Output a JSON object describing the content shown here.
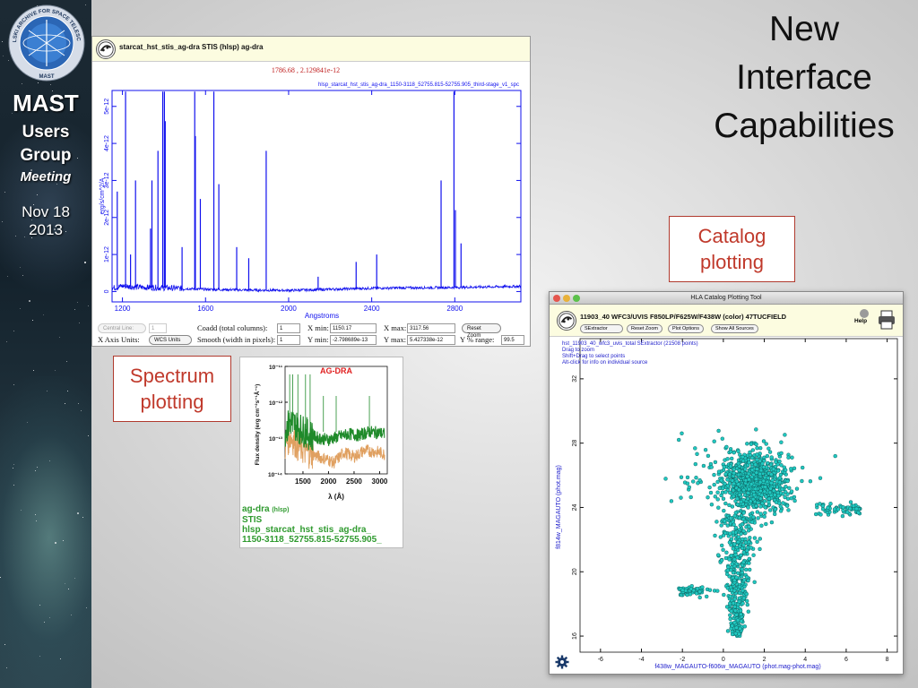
{
  "slide": {
    "title_lines": [
      "New",
      "Interface",
      "Capabilities"
    ],
    "catalog_callout": [
      "Catalog",
      "plotting"
    ],
    "spectrum_callout": [
      "Spectrum",
      "plotting"
    ]
  },
  "branding": {
    "logo_arc_text": "MIKULSKI ARCHIVE FOR SPACE TELESCOPES",
    "logo_label": "MAST",
    "line1": "MAST",
    "line2": "Users",
    "line3": "Group",
    "line4": "Meeting",
    "date_line1": "Nov 18",
    "date_line2": "2013"
  },
  "spectrum_tool": {
    "header_title": "starcat_hst_stis_ag-dra STIS (hlsp) ag-dra",
    "cursor_readout": "1786.68 , 2.129841e-12",
    "filename_label": "hlsp_starcat_hst_stis_ag-dra_1150-3118_52755.815-52755.905_third-stage_v1_spc",
    "controls": {
      "central_line_select": "Central Line:",
      "central_line_value": "1",
      "coadd_label": "Coadd (total columns):",
      "coadd_value": "1",
      "xmin_label": "X min:",
      "xmin_value": "1150.17",
      "xmax_label": "X max:",
      "xmax_value": "3117.56",
      "reset_zoom": "Reset Zoom",
      "xaxis_units_label": "X Axis Units:",
      "xaxis_units_value": "WCS Units",
      "smooth_label": "Smooth (width in pixels):",
      "smooth_value": "1",
      "ymin_label": "Y min:",
      "ymin_value": "-2.798689e-13",
      "ymax_label": "Y max:",
      "ymax_value": "5.427338e-12",
      "ypct_label": "Y % range:",
      "ypct_value": "99.5"
    }
  },
  "thumbnail": {
    "plot_title": "AG-DRA",
    "caption_name": "ag-dra",
    "caption_name_suffix": "(hlsp)",
    "caption_instrument": "STIS",
    "caption_file_line1": "hlsp_starcat_hst_stis_ag-dra_",
    "caption_file_line2": "1150-3118_52755.815-52755.905_"
  },
  "catalog_tool": {
    "window_title": "HLA Catalog Plotting Tool",
    "header_title": "11903_40 WFC3/UVIS F850LP/F625W/F438W (color) 47TUCFIELD",
    "buttons": {
      "select_value": "SExtractor",
      "reset_zoom": "Reset Zoom",
      "plot_options": "Plot Options",
      "show_all": "Show All Sources"
    },
    "help_label": "Help",
    "info_lines": [
      "hst_11903_40_wfc3_uvis_total SExtractor (21508 points)",
      "Drag to zoom",
      "Shift+Drag to select points",
      "Alt-click for info on individual source"
    ]
  },
  "chart_data": [
    {
      "type": "line",
      "xlabel": "Angstroms",
      "ylabel": "erg/s/cm^2/A",
      "xlim": [
        1150,
        3118
      ],
      "ylim": [
        -2.8e-13,
        5.43e-12
      ],
      "x_ticks": [
        1200,
        1600,
        2000,
        2400,
        2800
      ],
      "y_ticks": [
        0,
        1e-12,
        2e-12,
        3e-12,
        4e-12,
        5e-12
      ],
      "y_tick_labels": [
        "0",
        "1e-12",
        "2e-12",
        "3e-12",
        "4e-12",
        "5e-12"
      ],
      "color": "#1010ee",
      "continuum": [
        [
          1150,
          9e-14
        ],
        [
          1200,
          1.5e-13
        ],
        [
          1260,
          1.2e-13
        ],
        [
          1400,
          1e-13
        ],
        [
          1600,
          6e-14
        ],
        [
          1800,
          4e-14
        ],
        [
          2000,
          3e-14
        ],
        [
          2200,
          6e-14
        ],
        [
          2400,
          9e-14
        ],
        [
          2600,
          1e-13
        ],
        [
          2800,
          1.1e-13
        ],
        [
          3000,
          1.3e-13
        ],
        [
          3118,
          1.4e-13
        ]
      ],
      "emission_lines": [
        [
          1175,
          2.7e-12
        ],
        [
          1215,
          5.4e-12
        ],
        [
          1239,
          1e-12
        ],
        [
          1263,
          3e-12
        ],
        [
          1335,
          1.7e-12
        ],
        [
          1342,
          3e-12
        ],
        [
          1371,
          3.8e-12
        ],
        [
          1394,
          5.4e-12
        ],
        [
          1402,
          5.4e-12
        ],
        [
          1406,
          4.6e-12
        ],
        [
          1487,
          1.2e-12
        ],
        [
          1548,
          5.4e-12
        ],
        [
          1551,
          4.2e-12
        ],
        [
          1575,
          2.5e-12
        ],
        [
          1640,
          5.4e-12
        ],
        [
          1664,
          2.9e-12
        ],
        [
          1750,
          1.2e-12
        ],
        [
          1808,
          9e-13
        ],
        [
          1892,
          3.8e-12
        ],
        [
          2142,
          4e-13
        ],
        [
          2325,
          8e-13
        ],
        [
          2424,
          1e-12
        ],
        [
          2734,
          3e-12
        ],
        [
          2796,
          5.4e-12
        ],
        [
          2803,
          2.2e-12
        ],
        [
          2830,
          1.3e-12
        ]
      ]
    },
    {
      "type": "line",
      "title": "AG-DRA",
      "xlabel": "λ (Å)",
      "ylabel": "Flux density (erg cm⁻²s⁻¹Å⁻¹)",
      "xlim": [
        1150,
        3150
      ],
      "y_scale": "log",
      "ylim": [
        1e-14,
        1e-11
      ],
      "x_ticks": [
        1500,
        2000,
        2500,
        3000
      ],
      "y_tick_labels": [
        "10⁻¹¹",
        "10⁻¹²",
        "10⁻¹³",
        "10⁻¹⁴"
      ],
      "series": [
        {
          "color": "#e0a060",
          "values": [
            [
              1150,
              6e-14
            ],
            [
              1250,
              1.2e-13
            ],
            [
              1400,
              6e-14
            ],
            [
              1600,
              4e-14
            ],
            [
              1800,
              3e-14
            ],
            [
              2000,
              2.5e-14
            ],
            [
              2100,
              2e-14
            ],
            [
              2300,
              4e-14
            ],
            [
              2500,
              3e-14
            ],
            [
              2700,
              4.5e-14
            ],
            [
              3000,
              4e-14
            ],
            [
              3100,
              3.5e-14
            ]
          ]
        },
        {
          "color": "#1f8a2a",
          "values": [
            [
              1150,
              1.5e-13
            ],
            [
              1250,
              3e-13
            ],
            [
              1400,
              2e-13
            ],
            [
              1600,
              1.3e-13
            ],
            [
              1800,
              1e-13
            ],
            [
              2000,
              9e-14
            ],
            [
              2200,
              1.1e-13
            ],
            [
              2400,
              1.3e-13
            ],
            [
              2600,
              1.2e-13
            ],
            [
              2800,
              1.5e-13
            ],
            [
              3000,
              1.4e-13
            ],
            [
              3100,
              1.3e-13
            ]
          ]
        }
      ]
    },
    {
      "type": "scatter",
      "xlabel": "f438w_MAGAUTO-f606w_MAGAUTO (phot.mag-phot.mag)",
      "ylabel": "f814w_MAGAUTO (phot.mag)",
      "xlim": [
        -7,
        8.5
      ],
      "ylim": [
        34.5,
        15
      ],
      "x_ticks": [
        -6,
        -4,
        -2,
        0,
        2,
        4,
        6,
        8
      ],
      "y_ticks": [
        16,
        20,
        24,
        28,
        32
      ],
      "point_color": "#20c8c0",
      "point_edge": "#0a5050",
      "points_plotted_approx": 1400,
      "distribution": {
        "main_sequence_turnoff": [
          0.7,
          22.5
        ],
        "faint_limit": 16,
        "broad_blob_center": [
          1.5,
          25.5
        ],
        "upper_scatter_max": 31.5
      }
    }
  ]
}
